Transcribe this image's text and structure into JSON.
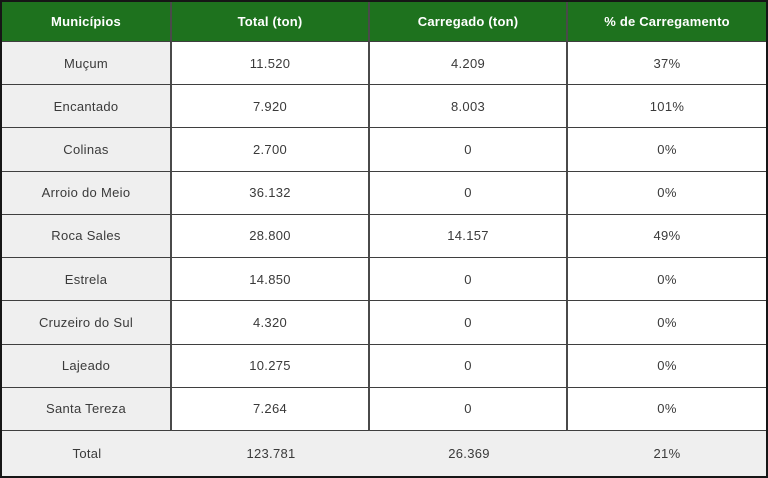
{
  "colors": {
    "header_bg": "#1e721e",
    "header_text": "#ffffff",
    "label_column_bg": "#efefef",
    "total_row_bg": "#efefef",
    "cell_bg": "#ffffff",
    "inner_border": "#4a4a4a",
    "outer_border": "#161616",
    "data_text": "#3a3a3a"
  },
  "chart_data": {
    "type": "table",
    "columns": [
      "Municípios",
      "Total (ton)",
      "Carregado (ton)",
      "% de Carregamento"
    ],
    "rows": [
      [
        "Muçum",
        "11.520",
        "4.209",
        "37%"
      ],
      [
        "Encantado",
        "7.920",
        "8.003",
        "101%"
      ],
      [
        "Colinas",
        "2.700",
        "0",
        "0%"
      ],
      [
        "Arroio do Meio",
        "36.132",
        "0",
        "0%"
      ],
      [
        "Roca Sales",
        "28.800",
        "14.157",
        "49%"
      ],
      [
        "Estrela",
        "14.850",
        "0",
        "0%"
      ],
      [
        "Cruzeiro do Sul",
        "4.320",
        "0",
        "0%"
      ],
      [
        "Lajeado",
        "10.275",
        "0",
        "0%"
      ],
      [
        "Santa Tereza",
        "7.264",
        "0",
        "0%"
      ]
    ],
    "footer": [
      "Total",
      "123.781",
      "26.369",
      "21%"
    ]
  }
}
